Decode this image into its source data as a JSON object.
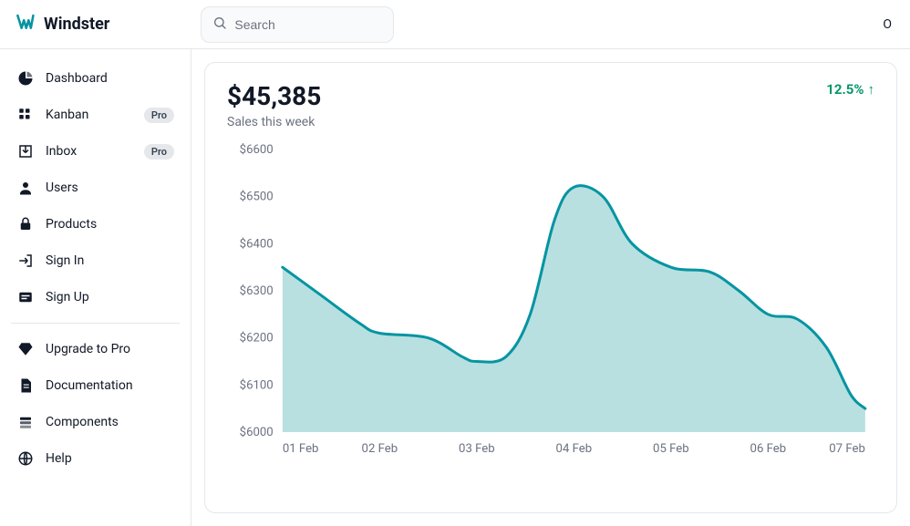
{
  "brand": {
    "name": "Windster",
    "logo_color": "#0694a2"
  },
  "search": {
    "placeholder": "Search"
  },
  "topbar_right_glyph": "O",
  "sidebar": {
    "groups": [
      {
        "items": [
          {
            "icon": "pie",
            "label": "Dashboard"
          },
          {
            "icon": "kanban",
            "label": "Kanban",
            "badge": "Pro"
          },
          {
            "icon": "inbox",
            "label": "Inbox",
            "badge": "Pro"
          },
          {
            "icon": "user",
            "label": "Users"
          },
          {
            "icon": "lock",
            "label": "Products"
          },
          {
            "icon": "signin",
            "label": "Sign In"
          },
          {
            "icon": "signup",
            "label": "Sign Up"
          }
        ]
      },
      {
        "items": [
          {
            "icon": "gem",
            "label": "Upgrade to Pro"
          },
          {
            "icon": "doc",
            "label": "Documentation"
          },
          {
            "icon": "layers",
            "label": "Components"
          },
          {
            "icon": "globe",
            "label": "Help"
          }
        ]
      }
    ]
  },
  "card": {
    "metric_value": "$45,385",
    "metric_sub": "Sales this week",
    "delta_text": "12.5%",
    "delta_arrow": "↑",
    "delta_color": "#059669"
  },
  "chart": {
    "type": "area",
    "line_color": "#0694a2",
    "fill_color": "#abdbdb",
    "fill_opacity": 0.85,
    "line_width": 3,
    "background_color": "#ffffff",
    "label_color": "#6b7280",
    "label_fontsize": 13,
    "ylim": [
      6000,
      6600
    ],
    "ytick_step": 100,
    "yticks": [
      6000,
      6100,
      6200,
      6300,
      6400,
      6500,
      6600
    ],
    "ytick_labels": [
      "$6000",
      "$6100",
      "$6200",
      "$6300",
      "$6400",
      "$6500",
      "$6600"
    ],
    "xticks": [
      "01 Feb",
      "02 Feb",
      "03 Feb",
      "04 Feb",
      "05 Feb",
      "06 Feb",
      "07 Feb"
    ],
    "series": [
      {
        "x": 0.0,
        "y": 6350
      },
      {
        "x": 0.4,
        "y": 6290
      },
      {
        "x": 0.8,
        "y": 6230
      },
      {
        "x": 1.0,
        "y": 6210
      },
      {
        "x": 1.5,
        "y": 6200
      },
      {
        "x": 1.85,
        "y": 6160
      },
      {
        "x": 2.0,
        "y": 6150
      },
      {
        "x": 2.3,
        "y": 6160
      },
      {
        "x": 2.55,
        "y": 6250
      },
      {
        "x": 2.8,
        "y": 6450
      },
      {
        "x": 3.0,
        "y": 6520
      },
      {
        "x": 3.3,
        "y": 6500
      },
      {
        "x": 3.6,
        "y": 6400
      },
      {
        "x": 4.0,
        "y": 6350
      },
      {
        "x": 4.4,
        "y": 6340
      },
      {
        "x": 4.7,
        "y": 6300
      },
      {
        "x": 5.0,
        "y": 6250
      },
      {
        "x": 5.3,
        "y": 6240
      },
      {
        "x": 5.6,
        "y": 6180
      },
      {
        "x": 5.85,
        "y": 6080
      },
      {
        "x": 6.0,
        "y": 6050
      }
    ]
  }
}
